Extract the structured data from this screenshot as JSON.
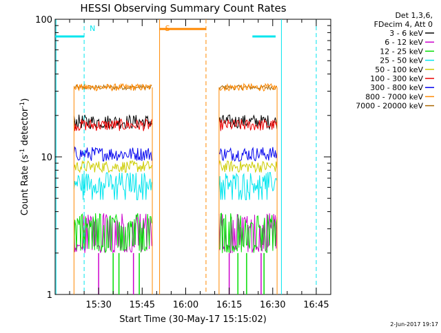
{
  "chart_data": {
    "type": "line",
    "title": "HESSI Observing Summary Count Rates",
    "xlabel": "Start Time (30-May-17 15:15:02)",
    "ylabel_main": "Count Rate (s",
    "ylabel_sup1": "-1",
    "ylabel_mid": " detector",
    "ylabel_sup2": "-1",
    "ylabel_end": ")",
    "y_scale": "log",
    "ylim": [
      1,
      100
    ],
    "y_ticks": [
      {
        "value": 1,
        "label": "1"
      },
      {
        "value": 10,
        "label": "10"
      },
      {
        "value": 100,
        "label": "100"
      }
    ],
    "xlim_minutes": [
      0,
      95
    ],
    "x_ticks": [
      {
        "minute": 15,
        "label": "15:30"
      },
      {
        "minute": 30,
        "label": "15:45"
      },
      {
        "minute": 45,
        "label": "16:00"
      },
      {
        "minute": 60,
        "label": "16:15"
      },
      {
        "minute": 75,
        "label": "16:30"
      },
      {
        "minute": 90,
        "label": "16:45"
      }
    ],
    "legend_header": [
      "Det 1,3,6,",
      "FDecim 4, Att 0"
    ],
    "legend_position": "top-right outside",
    "series": [
      {
        "name": "3 - 6 keV",
        "color": "#000000",
        "level": 18,
        "spread": 0.12
      },
      {
        "name": "6 - 12 keV",
        "color": "#cc00cc",
        "level": 2.6,
        "spread": 0.3
      },
      {
        "name": "12 - 25 keV",
        "color": "#00dd00",
        "level": 2.6,
        "spread": 0.3
      },
      {
        "name": "25 - 50 keV",
        "color": "#00e5ee",
        "level": 6.5,
        "spread": 0.18
      },
      {
        "name": "50 - 100 keV",
        "color": "#cccc00",
        "level": 8.5,
        "spread": 0.1
      },
      {
        "name": "100 - 300 keV",
        "color": "#ee0000",
        "level": 17,
        "spread": 0.1
      },
      {
        "name": "300 - 800 keV",
        "color": "#0000ee",
        "level": 10.5,
        "spread": 0.12
      },
      {
        "name": "800 - 7000 keV",
        "color": "#ff8800",
        "level": 32,
        "spread": 0.06
      },
      {
        "name": "7000 - 20000 keV",
        "color": "#aa6600",
        "level": 32,
        "spread": 0.04
      }
    ],
    "data_intervals_minutes": [
      [
        6.5,
        33.5
      ],
      [
        56.5,
        76.5
      ]
    ],
    "markers": [
      {
        "label": "N",
        "color": "#00e5ee",
        "style": "dashed",
        "minute": 10
      },
      {
        "label": "S",
        "color": "#ff8800",
        "style": "solid",
        "minute": 36
      }
    ],
    "flag_bars": [
      {
        "color": "#00e5ee",
        "from": 0,
        "to": 10,
        "level": 75
      },
      {
        "color": "#ff8800",
        "from": 36,
        "to": 52,
        "level": 85
      },
      {
        "color": "#00e5ee",
        "from": 68,
        "to": 76,
        "level": 75
      }
    ]
  },
  "footer": {
    "timestamp": "2-Jun-2017 19:17"
  }
}
